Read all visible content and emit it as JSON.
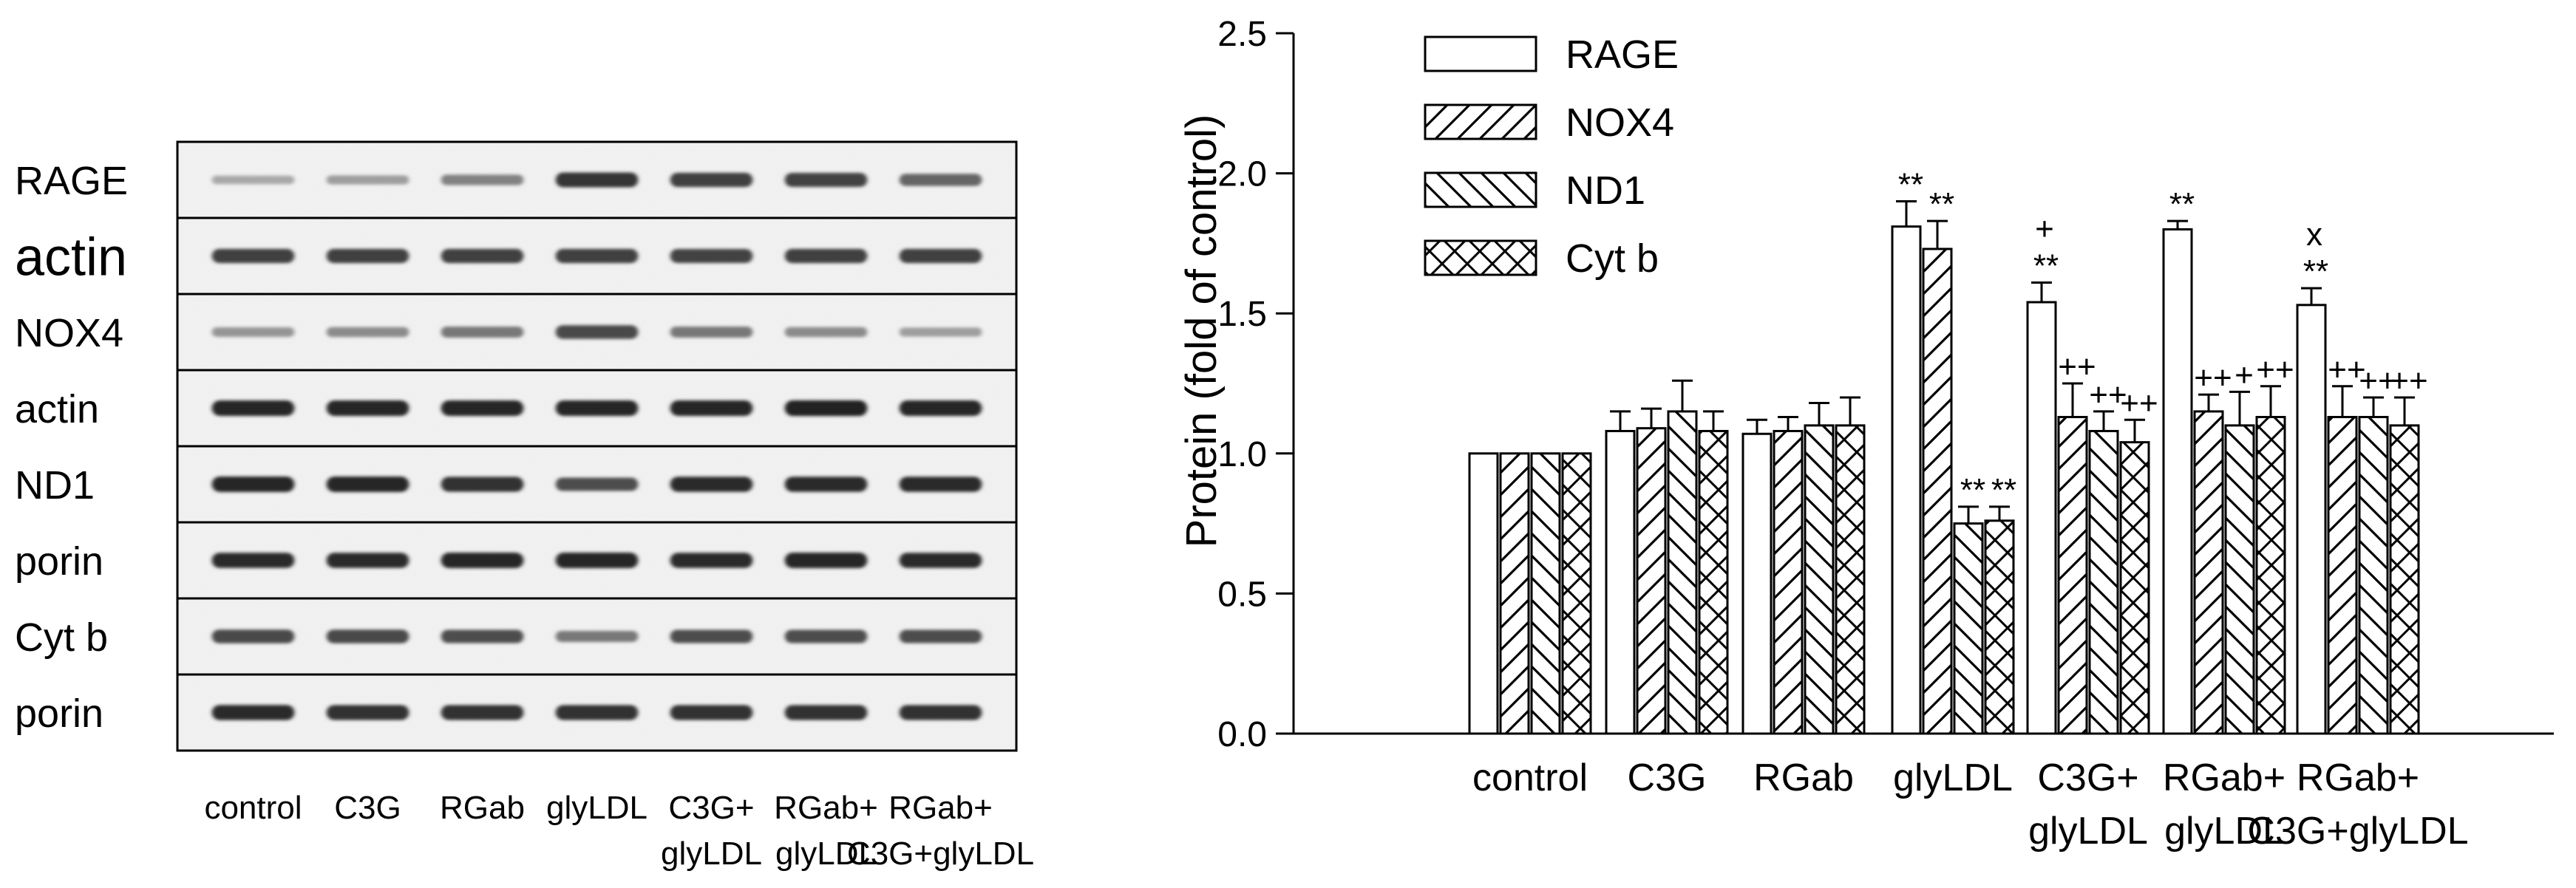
{
  "blot": {
    "bands": [
      {
        "label": "RAGE",
        "label_size": 54,
        "intensity": [
          0.25,
          0.3,
          0.45,
          0.85,
          0.8,
          0.78,
          0.6
        ]
      },
      {
        "label": "actin",
        "label_size": 72,
        "intensity": [
          0.8,
          0.8,
          0.8,
          0.8,
          0.78,
          0.8,
          0.8
        ]
      },
      {
        "label": "NOX4",
        "label_size": 54,
        "intensity": [
          0.35,
          0.4,
          0.5,
          0.75,
          0.5,
          0.4,
          0.3
        ]
      },
      {
        "label": "actin",
        "label_size": 54,
        "intensity": [
          0.92,
          0.92,
          0.92,
          0.92,
          0.92,
          0.95,
          0.92
        ]
      },
      {
        "label": "ND1",
        "label_size": 54,
        "intensity": [
          0.92,
          0.92,
          0.88,
          0.72,
          0.9,
          0.9,
          0.9
        ]
      },
      {
        "label": "porin",
        "label_size": 54,
        "intensity": [
          0.9,
          0.9,
          0.92,
          0.92,
          0.9,
          0.92,
          0.9
        ]
      },
      {
        "label": "Cyt b",
        "label_size": 54,
        "intensity": [
          0.75,
          0.75,
          0.72,
          0.5,
          0.72,
          0.72,
          0.72
        ]
      },
      {
        "label": "porin",
        "label_size": 54,
        "intensity": [
          0.9,
          0.88,
          0.88,
          0.88,
          0.88,
          0.88,
          0.88
        ]
      }
    ],
    "lanes": [
      {
        "line1": "control",
        "line2": ""
      },
      {
        "line1": "C3G",
        "line2": ""
      },
      {
        "line1": "RGab",
        "line2": ""
      },
      {
        "line1": "glyLDL",
        "line2": ""
      },
      {
        "line1": "C3G+",
        "line2": "glyLDL"
      },
      {
        "line1": "RGab+",
        "line2": "glyLDL"
      },
      {
        "line1": "RGab+",
        "line2": "C3G+glyLDL"
      }
    ]
  },
  "chart_data": {
    "type": "bar",
    "ylabel": "Protein (fold of control)",
    "ylim": [
      0,
      2.5
    ],
    "yticks": [
      "0.0",
      "0.5",
      "1.0",
      "1.5",
      "2.0",
      "2.5"
    ],
    "categories": [
      {
        "line1": "control",
        "line2": ""
      },
      {
        "line1": "C3G",
        "line2": ""
      },
      {
        "line1": "RGab",
        "line2": ""
      },
      {
        "line1": "glyLDL",
        "line2": ""
      },
      {
        "line1": "C3G+",
        "line2": "glyLDL"
      },
      {
        "line1": "RGab+",
        "line2": "glyLDL"
      },
      {
        "line1": "RGab+",
        "line2": "C3G+glyLDL"
      }
    ],
    "legend_position": "top-left",
    "series": [
      {
        "name": "RAGE",
        "pattern": "open",
        "values": [
          1.0,
          1.08,
          1.07,
          1.81,
          1.54,
          1.8,
          1.53
        ],
        "errors": [
          0,
          0.07,
          0.05,
          0.09,
          0.07,
          0.03,
          0.06
        ],
        "annotations": [
          "",
          "",
          "",
          "**",
          "**",
          "**",
          "**"
        ],
        "annotations_top": [
          "",
          "",
          "",
          "",
          "+",
          "",
          "x"
        ]
      },
      {
        "name": "NOX4",
        "pattern": "diag-right",
        "values": [
          1.0,
          1.09,
          1.08,
          1.73,
          1.13,
          1.15,
          1.13
        ],
        "errors": [
          0,
          0.07,
          0.05,
          0.1,
          0.12,
          0.06,
          0.11
        ],
        "annotations": [
          "",
          "",
          "",
          "**",
          "++",
          "++",
          "++"
        ],
        "annotations_top": [
          "",
          "",
          "",
          "",
          "",
          "",
          ""
        ]
      },
      {
        "name": "ND1",
        "pattern": "diag-left",
        "values": [
          1.0,
          1.15,
          1.1,
          0.75,
          1.08,
          1.1,
          1.13
        ],
        "errors": [
          0,
          0.11,
          0.08,
          0.06,
          0.07,
          0.12,
          0.07
        ],
        "annotations": [
          "",
          "",
          "",
          "**",
          "++",
          "+",
          "++"
        ],
        "annotations_top": [
          "",
          "",
          "",
          "",
          "",
          "",
          ""
        ]
      },
      {
        "name": "Cyt b",
        "pattern": "cross",
        "values": [
          1.0,
          1.08,
          1.1,
          0.76,
          1.04,
          1.13,
          1.1
        ],
        "errors": [
          0,
          0.07,
          0.1,
          0.05,
          0.08,
          0.11,
          0.1
        ],
        "annotations": [
          "",
          "",
          "",
          "**",
          "++",
          "++",
          "++"
        ],
        "annotations_top": [
          "",
          "",
          "",
          "",
          "",
          "",
          ""
        ]
      }
    ]
  }
}
